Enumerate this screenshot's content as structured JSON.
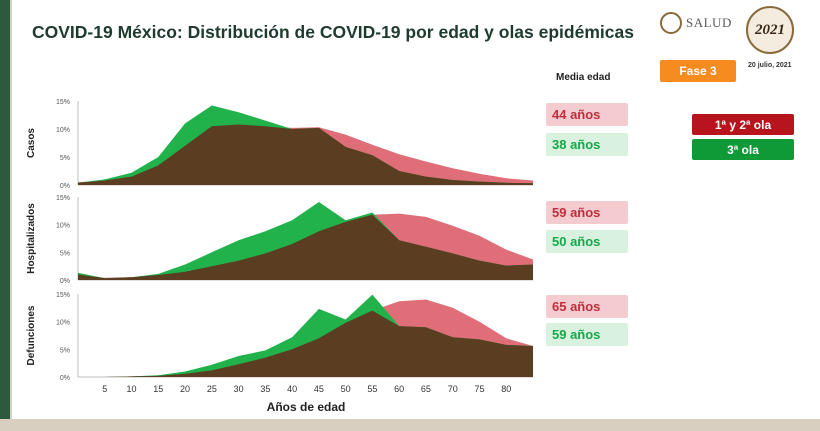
{
  "title": "COVID-19 México: Distribución de COVID-19 por edad y olas epidémicas",
  "logos": {
    "salud": "SALUD",
    "year_seal": "2021"
  },
  "date": "20 julio, 2021",
  "phase": "Fase 3",
  "media_header": "Media edad",
  "legend": [
    {
      "label": "1ª y 2ª ola",
      "color": "#b7141e"
    },
    {
      "label": "3ª ola",
      "color": "#0f9a37"
    }
  ],
  "colors": {
    "waves12_fill": "#df6e78",
    "wave3_fill": "#22b24c",
    "overlap_fill": "#5b3d22",
    "axis": "#bfbfbf"
  },
  "chart_data": {
    "type": "area",
    "xlabel": "Años de edad",
    "x": [
      0,
      5,
      10,
      15,
      20,
      25,
      30,
      35,
      40,
      45,
      50,
      55,
      60,
      65,
      70,
      75,
      80,
      85
    ],
    "x_tick_labels": [
      "5",
      "10",
      "15",
      "20",
      "25",
      "30",
      "35",
      "40",
      "45",
      "50",
      "55",
      "60",
      "65",
      "70",
      "75",
      "80"
    ],
    "ylim": [
      0,
      15
    ],
    "y_ticks": [
      "0%",
      "5%",
      "10%",
      "15%"
    ],
    "panels": [
      {
        "name": "Casos",
        "series": [
          {
            "name": "1ª y 2ª ola",
            "values": [
              0.5,
              0.8,
              1.5,
              3.5,
              7.0,
              10.5,
              10.8,
              10.5,
              10.2,
              10.3,
              9.0,
              7.2,
              5.5,
              4.2,
              3.0,
              2.0,
              1.2,
              0.8
            ]
          },
          {
            "name": "3ª ola",
            "values": [
              0.4,
              1.0,
              2.2,
              5.0,
              11.0,
              14.2,
              13.0,
              11.5,
              10.0,
              10.2,
              6.8,
              5.3,
              2.5,
              1.5,
              0.9,
              0.6,
              0.4,
              0.3
            ]
          }
        ],
        "median_ages": {
          "waves_1_2": "44 años",
          "wave_3": "38 años"
        }
      },
      {
        "name": "Hospitalizados",
        "series": [
          {
            "name": "1ª y 2ª ola",
            "values": [
              1.0,
              0.4,
              0.5,
              0.9,
              1.5,
              2.5,
              3.5,
              4.8,
              6.5,
              8.8,
              10.5,
              11.8,
              12.0,
              11.4,
              9.8,
              8.0,
              5.5,
              3.7
            ]
          },
          {
            "name": "3ª ola",
            "values": [
              1.3,
              0.3,
              0.5,
              1.1,
              2.8,
              5.0,
              7.2,
              8.8,
              10.8,
              14.1,
              10.8,
              12.2,
              7.2,
              6.0,
              4.8,
              3.5,
              2.6,
              2.8
            ]
          }
        ],
        "median_ages": {
          "waves_1_2": "59 años",
          "wave_3": "50 años"
        }
      },
      {
        "name": "Defunciones",
        "series": [
          {
            "name": "1ª y 2ª ola",
            "values": [
              0.0,
              0.0,
              0.1,
              0.2,
              0.6,
              1.2,
              2.3,
              3.5,
              5.0,
              7.0,
              9.8,
              12.0,
              13.7,
              14.0,
              12.5,
              10.0,
              7.0,
              5.6
            ]
          },
          {
            "name": "3ª ola",
            "values": [
              0.0,
              0.0,
              0.1,
              0.3,
              1.0,
              2.2,
              3.8,
              4.8,
              7.2,
              12.3,
              10.4,
              14.9,
              9.2,
              9.0,
              7.2,
              6.8,
              5.8,
              5.6
            ]
          }
        ],
        "median_ages": {
          "waves_1_2": "65 años",
          "wave_3": "59 años"
        }
      }
    ]
  }
}
